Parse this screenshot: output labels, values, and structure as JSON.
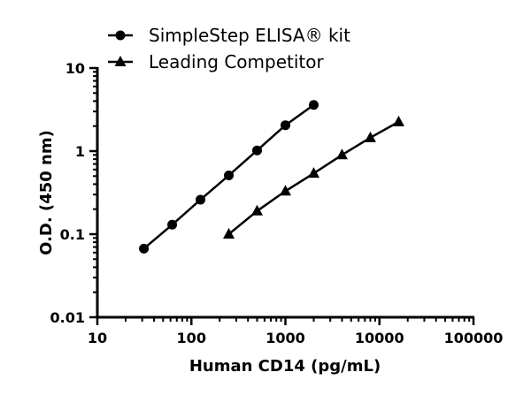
{
  "chart_data": {
    "type": "line",
    "xlabel": "Human CD14 (pg/mL)",
    "ylabel": "O.D. (450 nm)",
    "x_scale": "log",
    "y_scale": "log",
    "xlim": [
      10,
      100000
    ],
    "ylim": [
      0.01,
      10
    ],
    "x_ticks": [
      "10",
      "100",
      "1000",
      "10000",
      "100000"
    ],
    "y_ticks": [
      "0.01",
      "0.1",
      "1",
      "10"
    ],
    "grid": false,
    "legend_position": "top-left",
    "series": [
      {
        "name": "SimpleStep ELISA® kit",
        "marker": "circle",
        "color": "#000000",
        "x": [
          31.25,
          62.5,
          125,
          250,
          500,
          1000,
          2000
        ],
        "y": [
          0.067,
          0.13,
          0.26,
          0.51,
          1.02,
          2.05,
          3.6
        ]
      },
      {
        "name": "Leading Competitor",
        "marker": "triangle",
        "color": "#000000",
        "x": [
          250,
          500,
          1000,
          2000,
          4000,
          8000,
          16000
        ],
        "y": [
          0.1,
          0.19,
          0.33,
          0.54,
          0.9,
          1.45,
          2.25
        ]
      }
    ]
  }
}
